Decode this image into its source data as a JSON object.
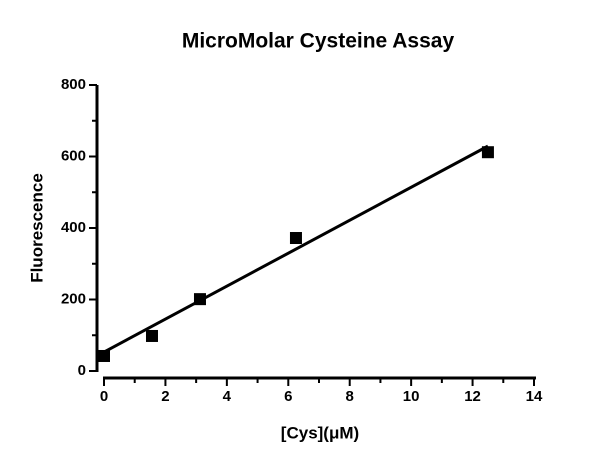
{
  "chart_data": {
    "type": "scatter",
    "title": "MicroMolar Cysteine Assay",
    "x_label": "[Cys](μM)",
    "y_label": "Fluorescence",
    "x": [
      0,
      1.5625,
      3.125,
      6.25,
      12.5
    ],
    "values": [
      42,
      98,
      201,
      372,
      612
    ],
    "color": "#000000",
    "fit_line": {
      "x": [
        0,
        12.5
      ],
      "values": [
        53,
        629
      ],
      "color": "#000000"
    },
    "xlim": [
      0,
      14
    ],
    "ylim": [
      0,
      800
    ],
    "xticks": [
      0,
      2,
      4,
      6,
      8,
      10,
      12,
      14
    ],
    "yticks": [
      0,
      200,
      400,
      600,
      800
    ],
    "x_minor_ticks": [
      1,
      3,
      5,
      7,
      9,
      11,
      13
    ],
    "y_minor_ticks": [
      100,
      300,
      500,
      700
    ],
    "grid": false
  }
}
